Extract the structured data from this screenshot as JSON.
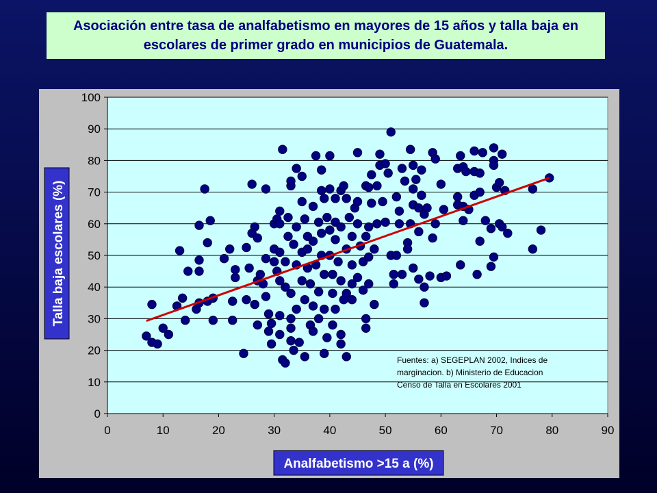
{
  "chart_data": {
    "type": "scatter",
    "title": "Asociación entre tasa de analfabetismo en mayores de 15 años y talla baja en escolares de primer grado en municipios de Guatemala.",
    "x_label": "Analfabetismo >15 a (%)",
    "y_label": "Talla baja escolares (%)",
    "annotation": [
      "Fuentes:  a) SEGEPLAN 2002, Indices de",
      "marginacion.  b) Ministerio de Educacion",
      "Censo de Talla en Escolares 2001"
    ],
    "xlim": [
      0,
      90
    ],
    "xticks": [
      0,
      10,
      20,
      30,
      40,
      50,
      60,
      70,
      80,
      90
    ],
    "ylim": [
      0,
      100
    ],
    "yticks": [
      0,
      10,
      20,
      30,
      40,
      50,
      60,
      70,
      80,
      90,
      100
    ],
    "grid": true,
    "color": "#000080",
    "trendline": {
      "x": [
        7,
        79.5
      ],
      "y": [
        29.3,
        74.5
      ],
      "color": "#cc0000"
    },
    "x": [
      7,
      8,
      8,
      9,
      10,
      11,
      12.5,
      13,
      13.5,
      14,
      14.5,
      16,
      16.5,
      16.5,
      16.5,
      16.5,
      17.5,
      18,
      18,
      18.5,
      19,
      19,
      21,
      22,
      22.5,
      22.5,
      23,
      23,
      24.5,
      25,
      25,
      25.5,
      26,
      26,
      26.5,
      26.5,
      27,
      27,
      27,
      27.5,
      28,
      28.5,
      28.5,
      28.5,
      29,
      29,
      29.5,
      29.5,
      30,
      30,
      30,
      30.5,
      30.5,
      31,
      31,
      31,
      31,
      31,
      31,
      31.5,
      31.5,
      32,
      32,
      32,
      32.5,
      32.5,
      33,
      33,
      33,
      33,
      33,
      33,
      33.5,
      33.5,
      34,
      34,
      34,
      34,
      34.5,
      35,
      35,
      35,
      35,
      35.5,
      35.5,
      35.5,
      36,
      36,
      36,
      36.5,
      36.5,
      37,
      37,
      37,
      37,
      37.5,
      37.5,
      38,
      38,
      38,
      38.5,
      38.5,
      38.5,
      38.5,
      39,
      39,
      39,
      39,
      39.5,
      39.5,
      40,
      40,
      40,
      40,
      40.5,
      40.5,
      40.5,
      41,
      41,
      41,
      41,
      41.5,
      42,
      42,
      42,
      42,
      42,
      42.5,
      42.5,
      43,
      43,
      43,
      43,
      43.5,
      44,
      44,
      44,
      44,
      44.5,
      45,
      45,
      45,
      45,
      45.5,
      46,
      46,
      46.5,
      46.5,
      46.5,
      46.5,
      47,
      47,
      47,
      47,
      47.5,
      47.5,
      48,
      48,
      48.5,
      48.5,
      49,
      49,
      49.5,
      50,
      50,
      50.5,
      51,
      51,
      51.5,
      51.5,
      52,
      52,
      52.5,
      52.5,
      53,
      53,
      53.5,
      54,
      54,
      54.5,
      54.5,
      55,
      55,
      55,
      55,
      55.5,
      56,
      56,
      56,
      56.5,
      56.5,
      57,
      57,
      57,
      57.5,
      58,
      58.5,
      58.5,
      59,
      59,
      60,
      60,
      60.5,
      61,
      63,
      63,
      63,
      63.5,
      63.5,
      64,
      64,
      64,
      64.5,
      65,
      66,
      66,
      66,
      66.5,
      67,
      67,
      67.5,
      67,
      68,
      69,
      69,
      69.5,
      69.5,
      69.5,
      69.5,
      70,
      70.5,
      70.5,
      71,
      71,
      71.5,
      72,
      76.5,
      76.5,
      78,
      79.5
    ],
    "values": [
      24.5,
      34.5,
      22.5,
      22,
      27,
      25,
      34,
      51.5,
      36.5,
      29.5,
      45,
      33,
      35,
      45,
      48.5,
      59.5,
      71,
      54,
      35.5,
      61,
      36.5,
      29.5,
      49,
      52,
      29.5,
      35.5,
      45.5,
      43,
      19,
      52.5,
      36,
      46,
      57,
      72.5,
      34.5,
      59,
      42,
      55.5,
      28,
      44,
      41,
      37,
      71,
      49,
      31.5,
      26,
      22,
      28.5,
      52,
      60,
      48,
      61.5,
      45,
      64,
      60,
      51,
      42,
      25,
      31,
      83.5,
      17,
      16,
      40,
      48,
      56,
      62,
      72,
      73.5,
      38,
      30,
      27,
      23,
      20,
      53.5,
      77.5,
      59,
      47,
      33,
      22.5,
      51,
      42,
      67,
      75,
      36,
      18,
      61.5,
      46,
      52,
      56,
      28,
      41,
      54.5,
      65.5,
      34,
      26,
      81.5,
      47,
      38.5,
      60.5,
      30,
      77,
      70.5,
      57,
      50,
      19,
      44,
      33,
      68,
      24,
      62,
      81.5,
      58,
      71,
      50,
      44,
      38,
      28,
      68,
      55,
      33,
      60.5,
      48,
      42,
      70.5,
      59,
      25,
      22,
      36,
      72,
      68,
      52,
      18,
      38,
      62,
      41,
      56,
      47,
      36,
      65,
      82.5,
      67,
      60,
      43,
      53,
      39,
      48,
      72,
      56,
      30,
      27,
      59,
      71.5,
      41,
      49.5,
      75.5,
      66.5,
      34.5,
      52,
      72,
      60,
      78.5,
      82,
      67,
      79,
      60.5,
      76,
      89,
      50,
      41,
      44,
      68.5,
      50,
      60,
      64,
      77.5,
      44,
      73.5,
      54,
      52,
      60,
      83.5,
      78.5,
      71,
      66,
      46,
      74,
      65,
      57.5,
      42.5,
      77,
      69,
      63,
      35,
      40,
      65,
      43.5,
      82.5,
      55.5,
      80.5,
      60,
      72.5,
      43,
      64.5,
      43.5,
      77.5,
      68.5,
      66,
      81.5,
      47,
      65.5,
      78,
      61,
      76.5,
      64.5,
      83,
      69,
      76.5,
      44,
      70,
      54.5,
      82.5,
      76,
      61,
      46.5,
      58.5,
      84,
      80,
      78.5,
      49.5,
      71.5,
      73,
      60,
      82,
      59,
      70.5,
      57,
      71,
      52,
      58,
      74.5
    ]
  }
}
